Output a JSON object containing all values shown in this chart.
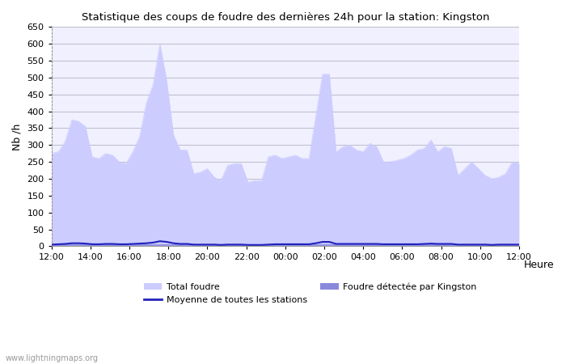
{
  "title": "Statistique des coups de foudre des dernières 24h pour la station: Kingston",
  "ylabel": "Nb /h",
  "xlabel": "Heure",
  "watermark": "www.lightningmaps.org",
  "ylim": [
    0,
    650
  ],
  "yticks": [
    0,
    50,
    100,
    150,
    200,
    250,
    300,
    350,
    400,
    450,
    500,
    550,
    600,
    650
  ],
  "x_labels": [
    "12:00",
    "14:00",
    "16:00",
    "18:00",
    "20:00",
    "22:00",
    "00:00",
    "02:00",
    "04:00",
    "06:00",
    "08:00",
    "10:00",
    "12:00"
  ],
  "total_foudre_color": "#ccccff",
  "kingston_color": "#8888dd",
  "moyenne_color": "#2222bb",
  "bg_color": "#f0f0ff",
  "grid_color": "#bbbbcc",
  "total_foudre": [
    275,
    280,
    310,
    375,
    370,
    355,
    265,
    260,
    275,
    270,
    250,
    245,
    280,
    325,
    425,
    480,
    600,
    490,
    330,
    285,
    285,
    215,
    220,
    230,
    205,
    195,
    240,
    245,
    245,
    190,
    195,
    195,
    265,
    270,
    260,
    265,
    270,
    260,
    260,
    385,
    510,
    510,
    280,
    295,
    300,
    285,
    280,
    305,
    295,
    250,
    250,
    255,
    260,
    270,
    285,
    290,
    315,
    280,
    295,
    290,
    210,
    230,
    250,
    230,
    210,
    200,
    205,
    215,
    250,
    245
  ],
  "kingston_foudre": [
    5,
    5,
    5,
    5,
    5,
    5,
    5,
    5,
    5,
    5,
    5,
    5,
    5,
    5,
    5,
    5,
    5,
    5,
    5,
    5,
    5,
    5,
    5,
    5,
    5,
    5,
    5,
    5,
    5,
    5,
    5,
    5,
    5,
    5,
    5,
    5,
    5,
    5,
    5,
    5,
    5,
    5,
    5,
    5,
    5,
    5,
    5,
    5,
    5,
    5,
    5,
    5,
    5,
    5,
    5,
    5,
    5,
    5,
    5,
    5,
    5,
    5,
    5,
    5,
    5,
    5,
    5,
    5,
    5,
    5
  ],
  "moyenne": [
    5,
    6,
    7,
    9,
    9,
    8,
    6,
    6,
    7,
    7,
    6,
    6,
    7,
    8,
    9,
    11,
    15,
    13,
    9,
    7,
    7,
    5,
    5,
    5,
    5,
    4,
    5,
    5,
    5,
    4,
    4,
    4,
    5,
    6,
    6,
    6,
    6,
    6,
    6,
    9,
    13,
    13,
    7,
    7,
    7,
    7,
    7,
    7,
    7,
    6,
    6,
    6,
    6,
    6,
    6,
    7,
    8,
    7,
    7,
    7,
    5,
    5,
    5,
    5,
    5,
    4,
    5,
    5,
    5,
    5
  ]
}
